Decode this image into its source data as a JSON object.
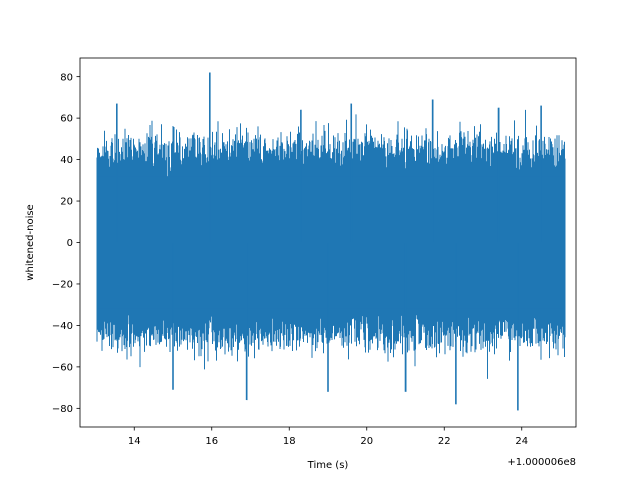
{
  "chart_data": {
    "type": "line",
    "xlabel": "Time (s)",
    "ylabel": "whitened-noise",
    "x_offset_label": "+1.000006e8",
    "xlim": [
      12.6,
      25.4
    ],
    "ylim": [
      -89,
      89
    ],
    "x_ticks": [
      {
        "value": 14,
        "label": "14"
      },
      {
        "value": 16,
        "label": "16"
      },
      {
        "value": 18,
        "label": "18"
      },
      {
        "value": 20,
        "label": "20"
      },
      {
        "value": 22,
        "label": "22"
      },
      {
        "value": 24,
        "label": "24"
      }
    ],
    "y_ticks": [
      {
        "value": 80,
        "label": "80"
      },
      {
        "value": 60,
        "label": "60"
      },
      {
        "value": 40,
        "label": "40"
      },
      {
        "value": 20,
        "label": "20"
      },
      {
        "value": 0,
        "label": "0"
      },
      {
        "value": -20,
        "label": "−20"
      },
      {
        "value": -40,
        "label": "−40"
      },
      {
        "value": -60,
        "label": "−60"
      },
      {
        "value": -80,
        "label": "−80"
      }
    ],
    "grid": false,
    "legend": "none",
    "series": [
      {
        "color": "#1f77b4",
        "x_range": [
          13.05,
          25.1
        ],
        "typical_envelope": [
          -45,
          45
        ],
        "extremes": [
          {
            "x": 15.95,
            "y": 82
          },
          {
            "x": 23.9,
            "y": -81
          },
          {
            "x": 16.9,
            "y": -76
          },
          {
            "x": 13.55,
            "y": 67
          },
          {
            "x": 19.6,
            "y": 67
          },
          {
            "x": 21.7,
            "y": 69
          },
          {
            "x": 22.3,
            "y": -78
          },
          {
            "x": 15.0,
            "y": -71
          },
          {
            "x": 19.0,
            "y": -72
          },
          {
            "x": 21.0,
            "y": -72
          },
          {
            "x": 24.5,
            "y": 66
          },
          {
            "x": 18.3,
            "y": 64
          },
          {
            "x": 23.4,
            "y": 65
          }
        ]
      }
    ]
  }
}
